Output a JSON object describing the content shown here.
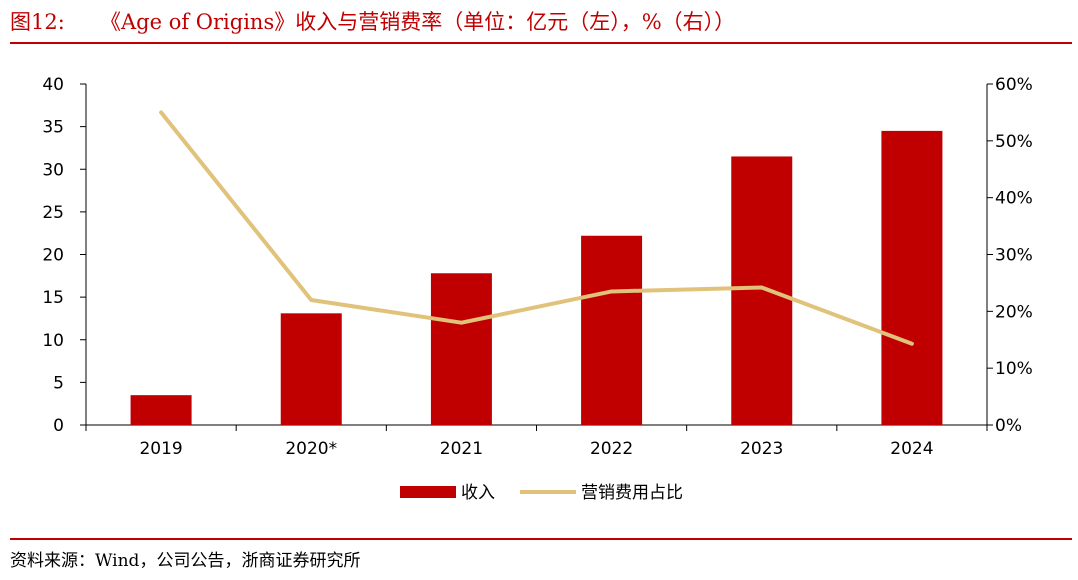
{
  "header": {
    "figure_label": "图12:",
    "title": "《Age of Origins》收入与营销费率（单位：亿元（左），%（右））"
  },
  "chart_data": {
    "type": "bar",
    "categories": [
      "2019",
      "2020*",
      "2021",
      "2022",
      "2023",
      "2024"
    ],
    "series": [
      {
        "name": "收入",
        "type": "bar",
        "axis": "left",
        "color": "#c00000",
        "values": [
          3.5,
          13.1,
          17.8,
          22.2,
          31.5,
          34.5
        ]
      },
      {
        "name": "营销费用占比",
        "type": "line",
        "axis": "right",
        "color": "#e0c27a",
        "values": [
          55,
          22,
          18,
          23.5,
          24.2,
          14.3
        ]
      }
    ],
    "left_axis": {
      "min": 0,
      "max": 40,
      "ticks": [
        0,
        5,
        10,
        15,
        20,
        25,
        30,
        35,
        40
      ]
    },
    "right_axis": {
      "min": 0,
      "max": 60,
      "ticks": [
        "0%",
        "10%",
        "20%",
        "30%",
        "40%",
        "50%",
        "60%"
      ]
    },
    "legend_position": "bottom-center",
    "grid": false
  },
  "footer": {
    "source": "资料来源：Wind，公司公告，浙商证券研究所"
  }
}
